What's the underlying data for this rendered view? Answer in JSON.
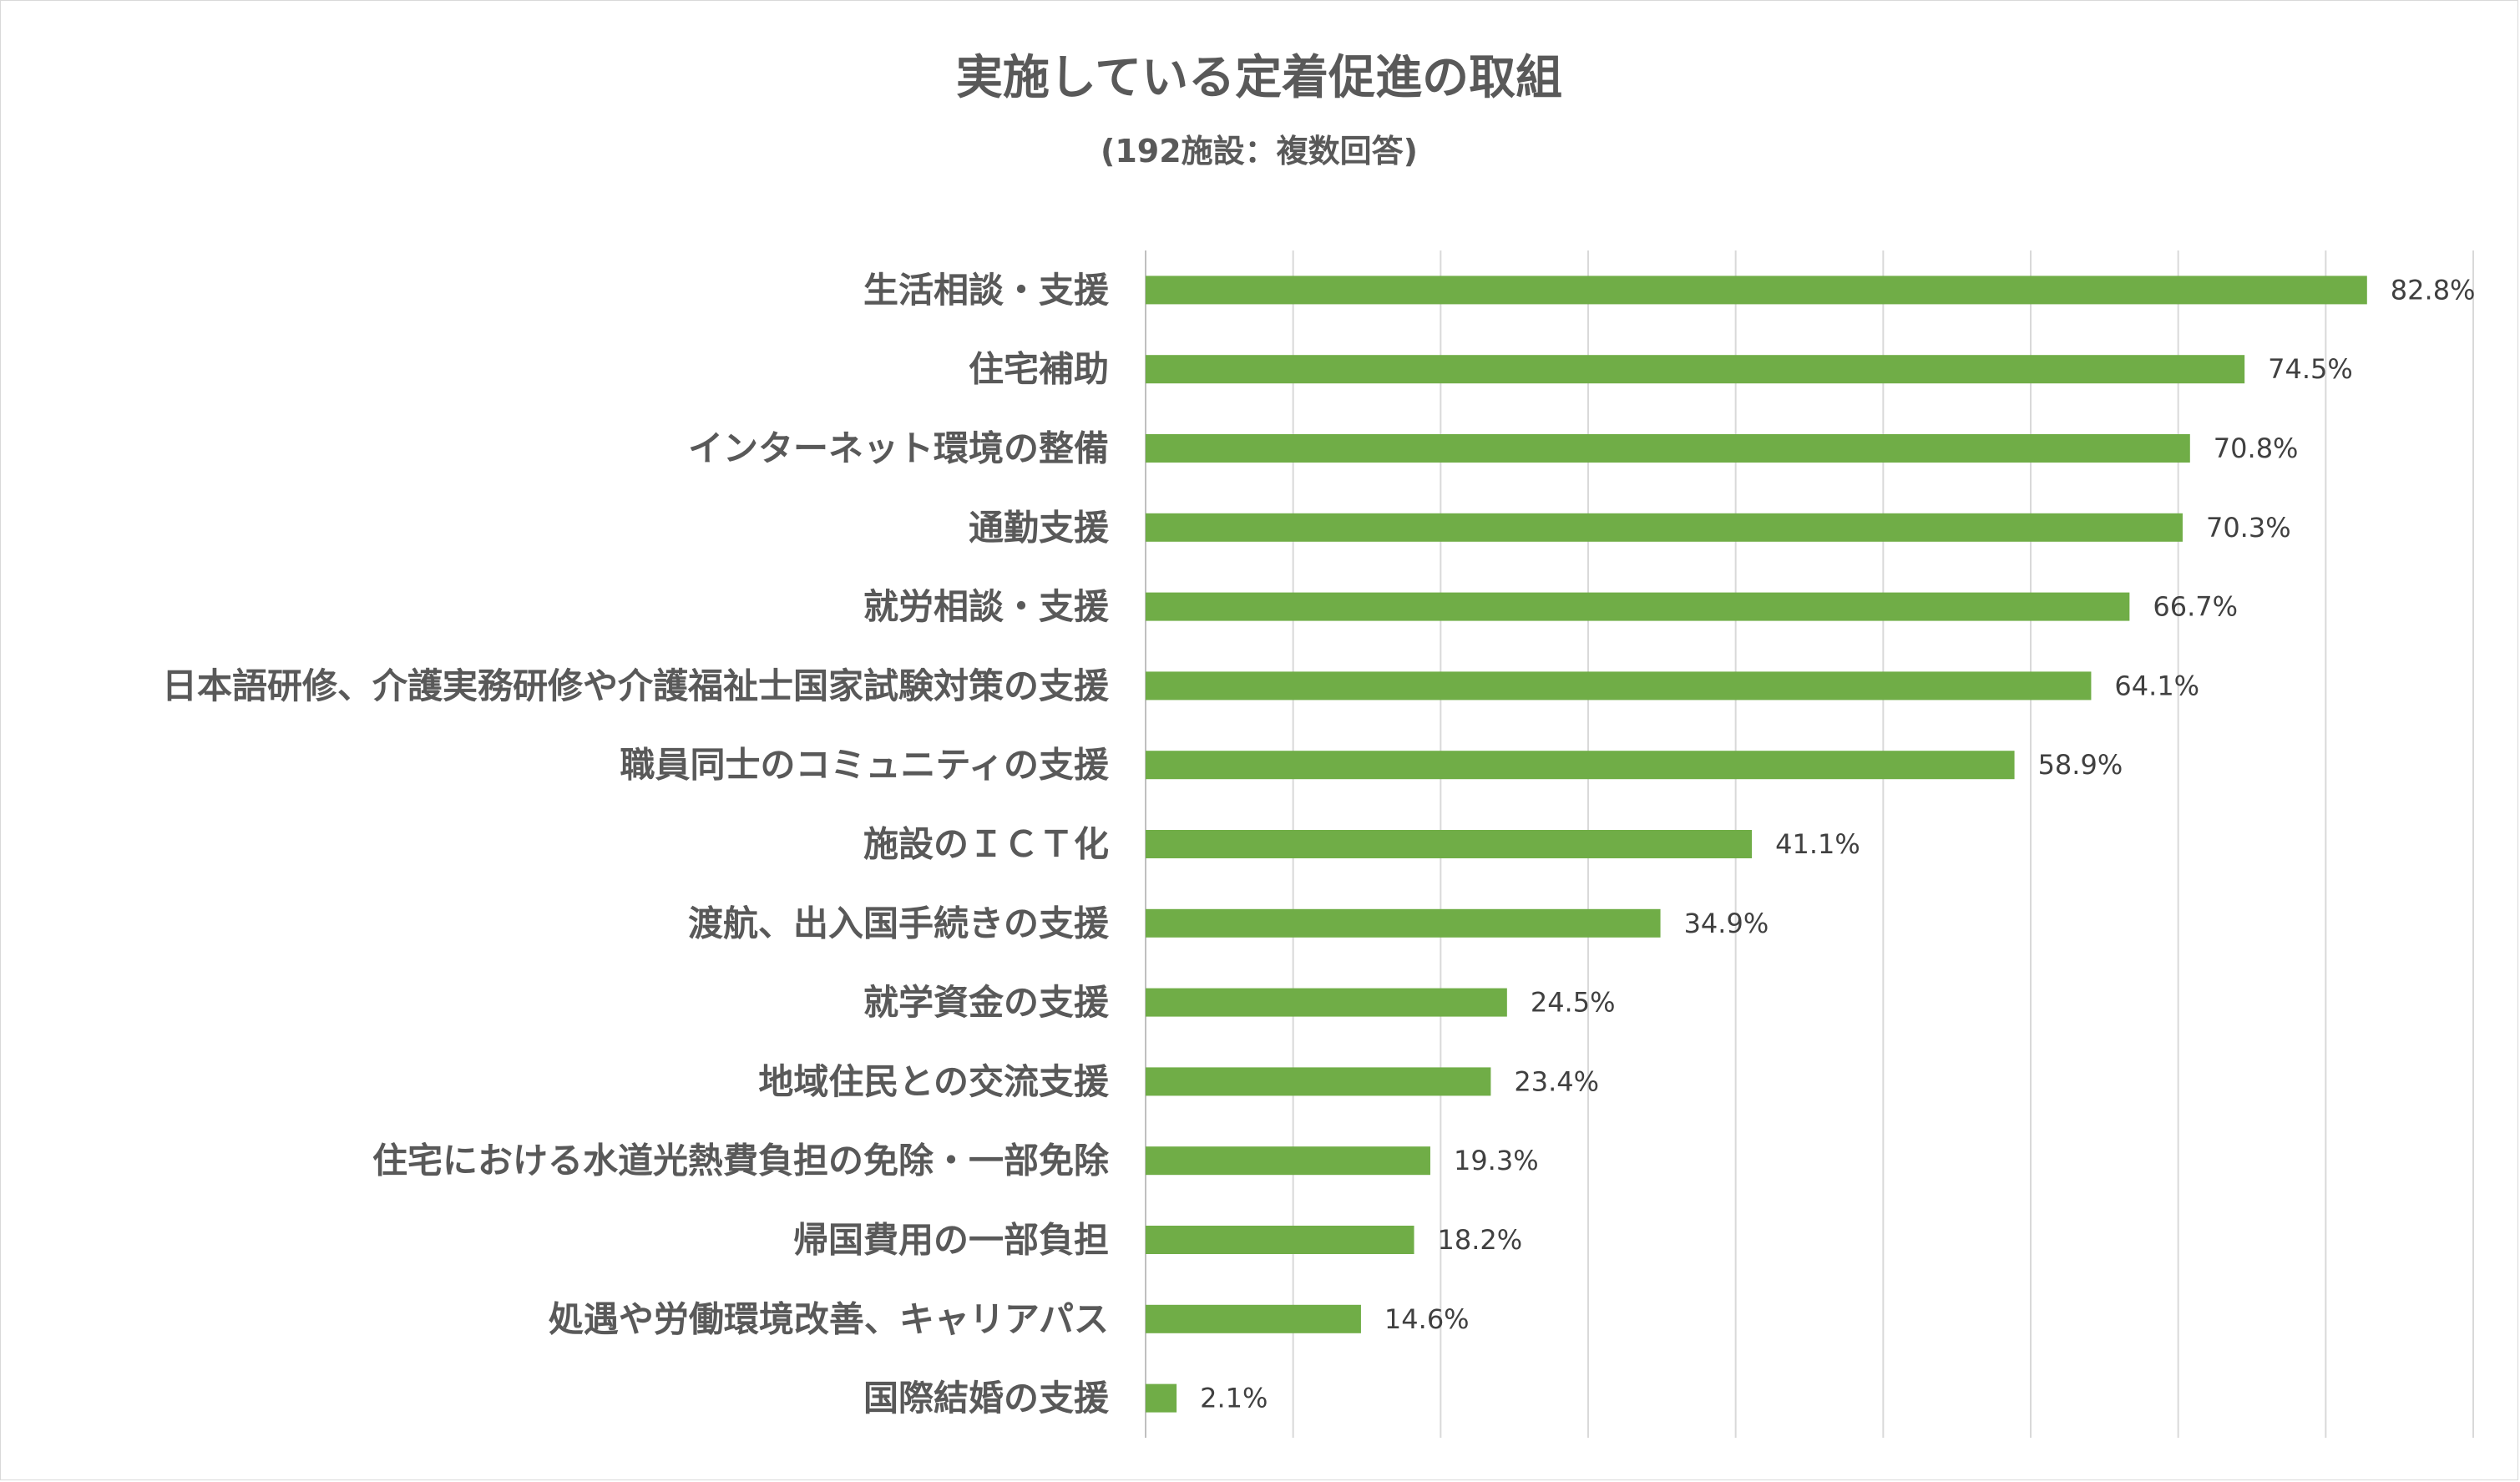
{
  "chart_data": {
    "type": "bar",
    "orientation": "horizontal",
    "title": "実施している定着促進の取組",
    "subtitle": "(192施設：複数回答)",
    "xlabel": "",
    "ylabel": "",
    "xlim": [
      0,
      90
    ],
    "grid": "vertical gridlines",
    "legend": "none",
    "bar_color": "#70ad47",
    "categories": [
      "生活相談・支援",
      "住宅補助",
      "インターネット環境の整備",
      "通勤支援",
      "就労相談・支援",
      "日本語研修、介護実務研修や介護福祉士国家試験対策の支援",
      "職員同士のコミュニティの支援",
      "施設のＩＣＴ化",
      "渡航、出入国手続きの支援",
      "就学資金の支援",
      "地域住民との交流支援",
      "住宅における水道光熱費負担の免除・一部免除",
      "帰国費用の一部負担",
      "処遇や労働環境改善、キャリアパス",
      "国際結婚の支援"
    ],
    "values": [
      82.8,
      74.5,
      70.8,
      70.3,
      66.7,
      64.1,
      58.9,
      41.1,
      34.9,
      24.5,
      23.4,
      19.3,
      18.2,
      14.6,
      2.1
    ],
    "data_labels": [
      "82.8%",
      "74.5%",
      "70.8%",
      "70.3%",
      "66.7%",
      "64.1%",
      "58.9%",
      "41.1%",
      "34.9%",
      "24.5%",
      "23.4%",
      "19.3%",
      "18.2%",
      "14.6%",
      "2.1%"
    ]
  }
}
